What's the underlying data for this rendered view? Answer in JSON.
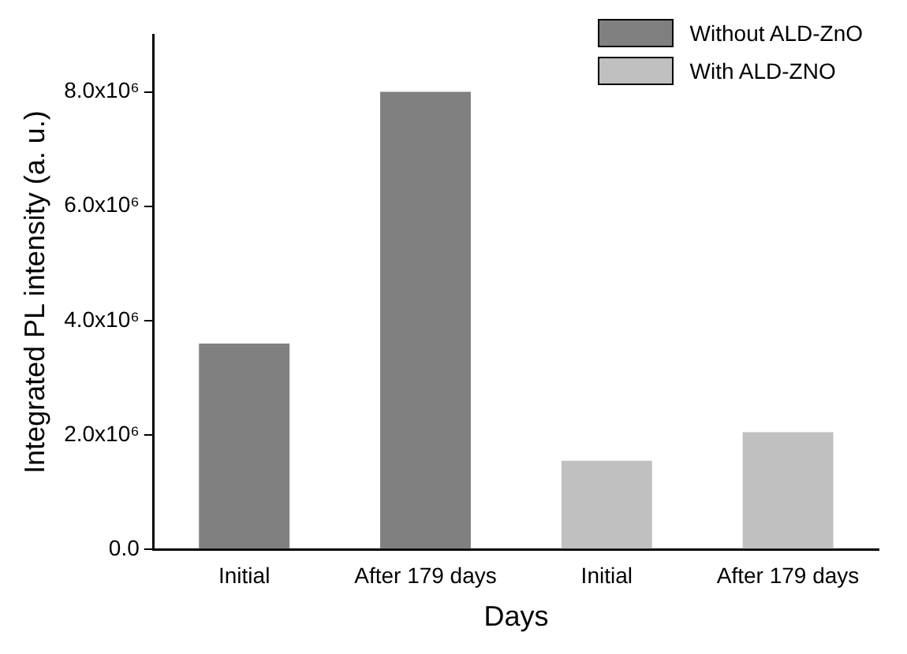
{
  "chart_data": {
    "type": "bar",
    "xlabel": "Days",
    "ylabel": "Integrated PL intensity (a. u.)",
    "categories": [
      "Initial",
      "After 179 days",
      "Initial",
      "After 179 days"
    ],
    "series": [
      {
        "name": "Without ALD-ZnO",
        "color": "#808080",
        "values": [
          3600000,
          8000000,
          null,
          null
        ]
      },
      {
        "name": "With ALD-ZNO",
        "color": "#c0c0c0",
        "values": [
          null,
          null,
          1550000,
          2050000
        ]
      }
    ],
    "ylim": [
      0,
      9000000
    ],
    "yticks": [
      {
        "value": 0,
        "label": "0.0"
      },
      {
        "value": 2000000,
        "label": "2.0x10⁶"
      },
      {
        "value": 4000000,
        "label": "4.0x10⁶"
      },
      {
        "value": 6000000,
        "label": "6.0x10⁶"
      },
      {
        "value": 8000000,
        "label": "8.0x10⁶"
      }
    ],
    "grid": false,
    "legend": "top right"
  }
}
